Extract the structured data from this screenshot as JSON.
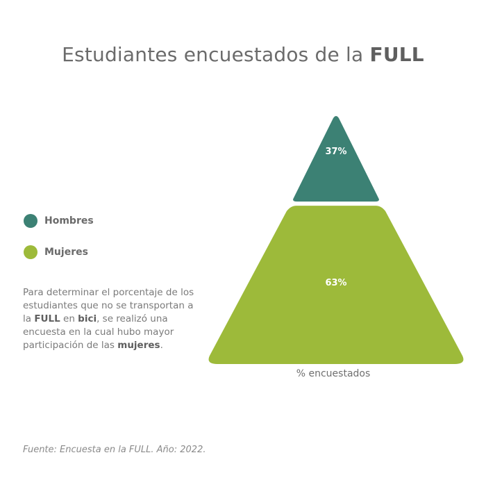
{
  "title": {
    "prefix": "Estudiantes encuestados de la ",
    "emphasis": "FULL"
  },
  "legend": [
    {
      "label": "Hombres",
      "color": "#3c8174"
    },
    {
      "label": "Mujeres",
      "color": "#9dba3a"
    }
  ],
  "description": {
    "p1": "Para determinar el porcentaje de los estudiantes que no se transportan a la ",
    "b1": "FULL",
    "p2": " en ",
    "b2": "bici",
    "p3": ", se realizó una encuesta en la cual hubo mayor participación de las ",
    "b3": "mujeres",
    "p4": "."
  },
  "source": "Fuente: Encuesta en la FULL. Año: 2022.",
  "chart_data": {
    "type": "pyramid",
    "xlabel": "% encuestados",
    "segments": [
      {
        "name": "Hombres",
        "value": 37,
        "label": "37%",
        "color": "#3c8174"
      },
      {
        "name": "Mujeres",
        "value": 63,
        "label": "63%",
        "color": "#9dba3a"
      }
    ]
  }
}
